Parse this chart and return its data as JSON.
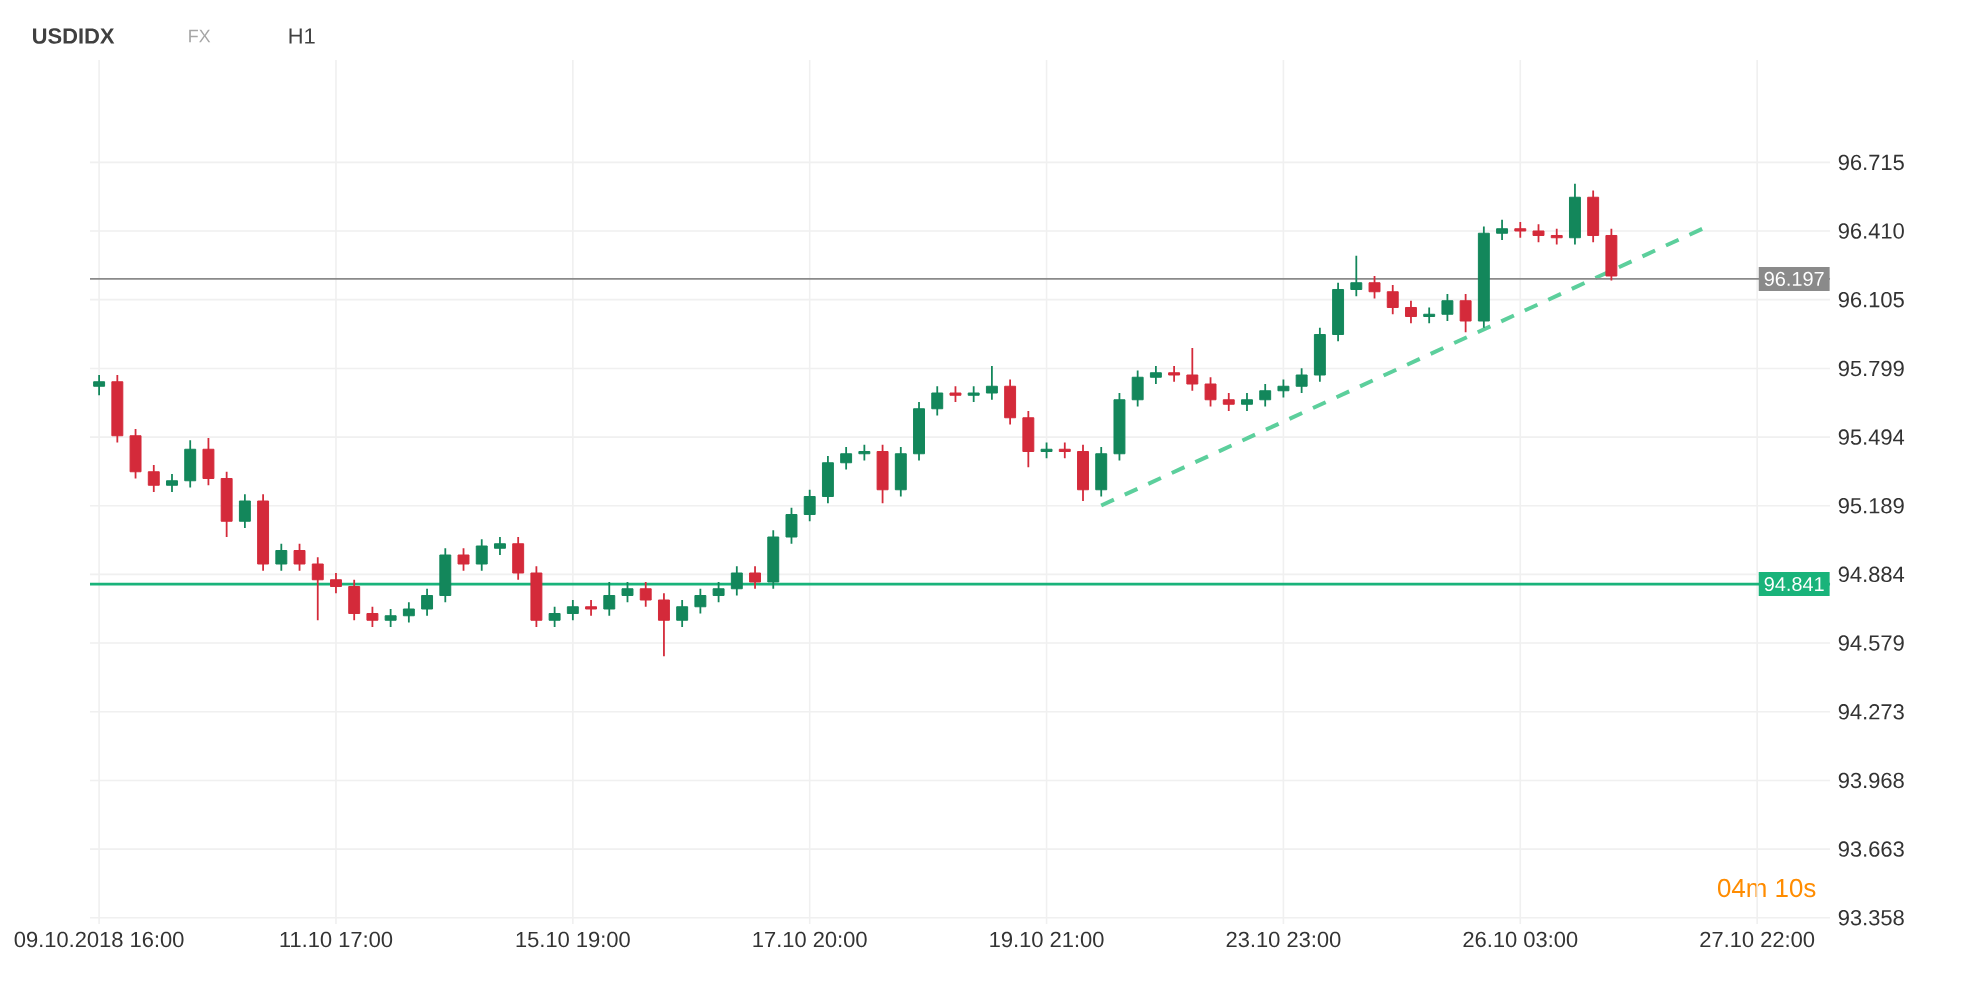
{
  "chart_data": {
    "type": "candlestick",
    "title": "USDIDX",
    "annotations": [
      "FX",
      "H1",
      "04m 10s"
    ],
    "categories": [
      "09.10.2018 16:00",
      null,
      null,
      null,
      null,
      null,
      null,
      null,
      null,
      null,
      null,
      null,
      null,
      "11.10 17:00",
      null,
      null,
      null,
      null,
      null,
      null,
      null,
      null,
      null,
      null,
      null,
      null,
      "15.10 19:00",
      null,
      null,
      null,
      null,
      null,
      null,
      null,
      null,
      null,
      null,
      null,
      null,
      "17.10 20:00",
      null,
      null,
      null,
      null,
      null,
      null,
      null,
      null,
      null,
      null,
      null,
      null,
      "19.10 21:00",
      null,
      null,
      null,
      null,
      null,
      null,
      null,
      null,
      null,
      null,
      null,
      null,
      "23.10 23:00",
      null,
      null,
      null,
      null,
      null,
      null,
      null,
      null,
      null,
      null,
      null,
      null,
      "26.10 03:00",
      null,
      null,
      null,
      null,
      null,
      null,
      null,
      null,
      null,
      null,
      null,
      null,
      "27.10 22:00"
    ],
    "ohlc": [
      [
        95.72,
        95.77,
        95.68,
        95.74
      ],
      [
        95.74,
        95.77,
        95.47,
        95.5
      ],
      [
        95.5,
        95.53,
        95.31,
        95.34
      ],
      [
        95.34,
        95.37,
        95.25,
        95.28
      ],
      [
        95.28,
        95.33,
        95.25,
        95.3
      ],
      [
        95.3,
        95.48,
        95.27,
        95.44
      ],
      [
        95.44,
        95.49,
        95.28,
        95.31
      ],
      [
        95.31,
        95.34,
        95.05,
        95.12
      ],
      [
        95.12,
        95.24,
        95.09,
        95.21
      ],
      [
        95.21,
        95.24,
        94.9,
        94.93
      ],
      [
        94.93,
        95.02,
        94.9,
        94.99
      ],
      [
        94.99,
        95.02,
        94.9,
        94.93
      ],
      [
        94.93,
        94.96,
        94.68,
        94.86
      ],
      [
        94.86,
        94.89,
        94.8,
        94.83
      ],
      [
        94.83,
        94.86,
        94.68,
        94.71
      ],
      [
        94.71,
        94.74,
        94.65,
        94.68
      ],
      [
        94.68,
        94.73,
        94.65,
        94.7
      ],
      [
        94.7,
        94.76,
        94.67,
        94.73
      ],
      [
        94.73,
        94.82,
        94.7,
        94.79
      ],
      [
        94.79,
        95.0,
        94.76,
        94.97
      ],
      [
        94.97,
        95.0,
        94.9,
        94.93
      ],
      [
        94.93,
        95.04,
        94.9,
        95.01
      ],
      [
        95.0,
        95.05,
        94.97,
        95.02
      ],
      [
        95.02,
        95.05,
        94.86,
        94.89
      ],
      [
        94.89,
        94.92,
        94.65,
        94.68
      ],
      [
        94.68,
        94.74,
        94.65,
        94.71
      ],
      [
        94.71,
        94.77,
        94.68,
        94.74
      ],
      [
        94.74,
        94.77,
        94.7,
        94.73
      ],
      [
        94.73,
        94.85,
        94.7,
        94.79
      ],
      [
        94.79,
        94.85,
        94.76,
        94.82
      ],
      [
        94.82,
        94.85,
        94.74,
        94.77
      ],
      [
        94.77,
        94.8,
        94.52,
        94.68
      ],
      [
        94.68,
        94.77,
        94.65,
        94.74
      ],
      [
        94.74,
        94.82,
        94.71,
        94.79
      ],
      [
        94.79,
        94.85,
        94.76,
        94.82
      ],
      [
        94.82,
        94.92,
        94.79,
        94.89
      ],
      [
        94.89,
        94.92,
        94.82,
        94.85
      ],
      [
        94.85,
        95.08,
        94.82,
        95.05
      ],
      [
        95.05,
        95.18,
        95.02,
        95.15
      ],
      [
        95.15,
        95.26,
        95.12,
        95.23
      ],
      [
        95.23,
        95.41,
        95.2,
        95.38
      ],
      [
        95.38,
        95.45,
        95.35,
        95.42
      ],
      [
        95.42,
        95.46,
        95.39,
        95.43
      ],
      [
        95.43,
        95.46,
        95.2,
        95.26
      ],
      [
        95.26,
        95.45,
        95.23,
        95.42
      ],
      [
        95.42,
        95.65,
        95.39,
        95.62
      ],
      [
        95.62,
        95.72,
        95.59,
        95.69
      ],
      [
        95.69,
        95.72,
        95.65,
        95.68
      ],
      [
        95.68,
        95.72,
        95.65,
        95.69
      ],
      [
        95.69,
        95.81,
        95.66,
        95.72
      ],
      [
        95.72,
        95.75,
        95.55,
        95.58
      ],
      [
        95.58,
        95.61,
        95.36,
        95.43
      ],
      [
        95.43,
        95.47,
        95.4,
        95.44
      ],
      [
        95.44,
        95.47,
        95.4,
        95.43
      ],
      [
        95.43,
        95.46,
        95.21,
        95.26
      ],
      [
        95.26,
        95.45,
        95.23,
        95.42
      ],
      [
        95.42,
        95.69,
        95.39,
        95.66
      ],
      [
        95.66,
        95.79,
        95.63,
        95.76
      ],
      [
        95.76,
        95.81,
        95.73,
        95.78
      ],
      [
        95.78,
        95.81,
        95.74,
        95.77
      ],
      [
        95.77,
        95.89,
        95.7,
        95.73
      ],
      [
        95.73,
        95.76,
        95.63,
        95.66
      ],
      [
        95.66,
        95.69,
        95.61,
        95.64
      ],
      [
        95.64,
        95.69,
        95.61,
        95.66
      ],
      [
        95.66,
        95.73,
        95.63,
        95.7
      ],
      [
        95.7,
        95.75,
        95.67,
        95.72
      ],
      [
        95.72,
        95.8,
        95.69,
        95.77
      ],
      [
        95.77,
        95.98,
        95.74,
        95.95
      ],
      [
        95.95,
        96.18,
        95.92,
        96.15
      ],
      [
        96.15,
        96.3,
        96.12,
        96.18
      ],
      [
        96.18,
        96.21,
        96.11,
        96.14
      ],
      [
        96.14,
        96.17,
        96.04,
        96.07
      ],
      [
        96.07,
        96.1,
        96.0,
        96.03
      ],
      [
        96.03,
        96.07,
        96.0,
        96.04
      ],
      [
        96.04,
        96.13,
        96.01,
        96.1
      ],
      [
        96.1,
        96.13,
        95.96,
        96.01
      ],
      [
        96.01,
        96.43,
        95.98,
        96.4
      ],
      [
        96.4,
        96.46,
        96.37,
        96.42
      ],
      [
        96.42,
        96.45,
        96.38,
        96.41
      ],
      [
        96.41,
        96.44,
        96.36,
        96.39
      ],
      [
        96.39,
        96.42,
        96.35,
        96.38
      ],
      [
        96.38,
        96.62,
        96.35,
        96.56
      ],
      [
        96.56,
        96.59,
        96.36,
        96.39
      ],
      [
        96.39,
        96.42,
        96.19,
        96.21
      ],
      null,
      null,
      null,
      null,
      null,
      null,
      null,
      null
    ],
    "colors": [
      "#13875b",
      "#d42a3a",
      "#d42a3a",
      "#d42a3a",
      "#13875b",
      "#13875b",
      "#d42a3a",
      "#d42a3a",
      "#13875b",
      "#d42a3a",
      "#13875b",
      "#d42a3a",
      "#d42a3a",
      "#d42a3a",
      "#d42a3a",
      "#d42a3a",
      "#13875b",
      "#13875b",
      "#13875b",
      "#13875b",
      "#d42a3a",
      "#13875b",
      "#13875b",
      "#d42a3a",
      "#d42a3a",
      "#13875b",
      "#13875b",
      "#d42a3a",
      "#13875b",
      "#13875b",
      "#d42a3a",
      "#d42a3a",
      "#13875b",
      "#13875b",
      "#13875b",
      "#13875b",
      "#d42a3a",
      "#13875b",
      "#13875b",
      "#13875b",
      "#13875b",
      "#13875b",
      "#13875b",
      "#d42a3a",
      "#13875b",
      "#13875b",
      "#13875b",
      "#d42a3a",
      "#13875b",
      "#13875b",
      "#d42a3a",
      "#d42a3a",
      "#13875b",
      "#d42a3a",
      "#d42a3a",
      "#13875b",
      "#13875b",
      "#13875b",
      "#13875b",
      "#d42a3a",
      "#d42a3a",
      "#d42a3a",
      "#d42a3a",
      "#13875b",
      "#13875b",
      "#13875b",
      "#13875b",
      "#13875b",
      "#13875b",
      "#13875b",
      "#d42a3a",
      "#d42a3a",
      "#d42a3a",
      "#13875b",
      "#13875b",
      "#d42a3a",
      "#13875b",
      "#13875b",
      "#d42a3a",
      "#d42a3a",
      "#d42a3a",
      "#13875b",
      "#d42a3a",
      "#d42a3a",
      null,
      null,
      null,
      null,
      null,
      null,
      null,
      null
    ],
    "series": [
      {
        "type": "line",
        "values": [
          null,
          null,
          null,
          null,
          null,
          null,
          null,
          null,
          null,
          null,
          null,
          null,
          null,
          null,
          null,
          null,
          null,
          null,
          null,
          null,
          null,
          null,
          null,
          null,
          null,
          null,
          null,
          null,
          null,
          null,
          null,
          null,
          null,
          null,
          null,
          null,
          null,
          null,
          null,
          null,
          null,
          null,
          null,
          null,
          null,
          null,
          null,
          null,
          null,
          null,
          null,
          null,
          null,
          null,
          null,
          95.19,
          null,
          null,
          null,
          null,
          null,
          null,
          null,
          null,
          null,
          null,
          null,
          null,
          null,
          null,
          null,
          null,
          null,
          null,
          null,
          null,
          null,
          null,
          null,
          null,
          null,
          null,
          null,
          null,
          null,
          null,
          null,
          null,
          96.42,
          null,
          null,
          null
        ],
        "color": "#5ccf9c",
        "line_style": "dashed"
      }
    ],
    "ref_lines": [
      {
        "axis": "y",
        "value": 94.841,
        "label": "94.841",
        "color": "#19b37a",
        "line_style": "solid"
      },
      {
        "axis": "y",
        "value": 96.197,
        "label": "96.197",
        "color": "#8a8a8a",
        "line_style": "solid"
      }
    ],
    "ylim": [
      93.33,
      97.17
    ],
    "yticks": [
      {
        "value": 93.358,
        "label": "93.358"
      },
      {
        "value": 93.663,
        "label": "93.663"
      },
      {
        "value": 93.968,
        "label": "93.968"
      },
      {
        "value": 94.273,
        "label": "94.273"
      },
      {
        "value": 94.579,
        "label": "94.579"
      },
      {
        "value": 94.884,
        "label": "94.884"
      },
      {
        "value": 95.189,
        "label": "95.189"
      },
      {
        "value": 95.494,
        "label": "95.494"
      },
      {
        "value": 95.799,
        "label": "95.799"
      },
      {
        "value": 96.105,
        "label": "96.105"
      },
      {
        "value": 96.41,
        "label": "96.410"
      },
      {
        "value": 96.715,
        "label": "96.715"
      }
    ],
    "grid": true
  }
}
